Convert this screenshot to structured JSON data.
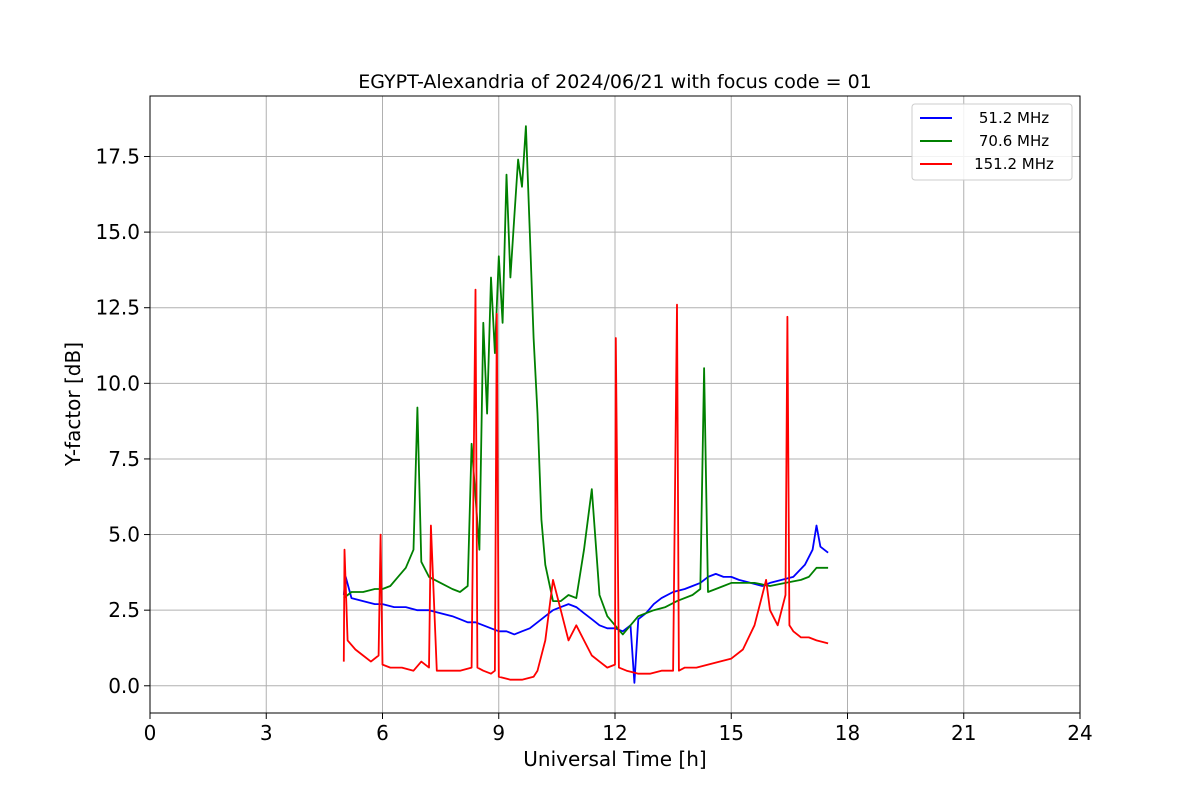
{
  "chart_data": {
    "type": "line",
    "title": "EGYPT-Alexandria of 2024/06/21 with focus code = 01",
    "xlabel": "Universal Time [h]",
    "ylabel": "Y-factor [dB]",
    "xlim": [
      0,
      24
    ],
    "ylim": [
      -0.9,
      19.5
    ],
    "xticks": [
      0,
      3,
      6,
      9,
      12,
      15,
      18,
      21,
      24
    ],
    "yticks": [
      0.0,
      2.5,
      5.0,
      7.5,
      10.0,
      12.5,
      15.0,
      17.5
    ],
    "grid": true,
    "legend_position": "top-right",
    "series": [
      {
        "name": "51.2 MHz",
        "color": "#0000ff",
        "x": [
          5.0,
          5.05,
          5.2,
          5.5,
          5.8,
          6.0,
          6.3,
          6.6,
          6.9,
          7.2,
          7.5,
          7.8,
          8.0,
          8.2,
          8.4,
          8.6,
          8.8,
          9.0,
          9.2,
          9.4,
          9.6,
          9.8,
          10.0,
          10.2,
          10.4,
          10.6,
          10.8,
          11.0,
          11.2,
          11.4,
          11.6,
          11.8,
          12.0,
          12.2,
          12.4,
          12.5,
          12.6,
          12.8,
          13.0,
          13.2,
          13.5,
          13.8,
          14.0,
          14.2,
          14.4,
          14.6,
          14.8,
          15.0,
          15.2,
          15.5,
          15.8,
          16.0,
          16.3,
          16.6,
          16.9,
          17.1,
          17.2,
          17.3,
          17.5
        ],
        "y": [
          3.0,
          3.6,
          2.9,
          2.8,
          2.7,
          2.7,
          2.6,
          2.6,
          2.5,
          2.5,
          2.4,
          2.3,
          2.2,
          2.1,
          2.1,
          2.0,
          1.9,
          1.8,
          1.8,
          1.7,
          1.8,
          1.9,
          2.1,
          2.3,
          2.5,
          2.6,
          2.7,
          2.6,
          2.4,
          2.2,
          2.0,
          1.9,
          1.9,
          1.8,
          2.0,
          0.1,
          2.2,
          2.4,
          2.7,
          2.9,
          3.1,
          3.2,
          3.3,
          3.4,
          3.6,
          3.7,
          3.6,
          3.6,
          3.5,
          3.4,
          3.3,
          3.4,
          3.5,
          3.6,
          4.0,
          4.5,
          5.3,
          4.6,
          4.4
        ]
      },
      {
        "name": "70.6 MHz",
        "color": "#008000",
        "x": [
          5.0,
          5.2,
          5.5,
          5.8,
          6.0,
          6.2,
          6.4,
          6.6,
          6.8,
          6.9,
          7.0,
          7.2,
          7.5,
          7.8,
          8.0,
          8.2,
          8.3,
          8.5,
          8.6,
          8.7,
          8.8,
          8.9,
          9.0,
          9.1,
          9.2,
          9.3,
          9.4,
          9.5,
          9.6,
          9.7,
          9.8,
          9.9,
          10.0,
          10.1,
          10.2,
          10.4,
          10.6,
          10.8,
          11.0,
          11.2,
          11.4,
          11.6,
          11.8,
          12.0,
          12.2,
          12.4,
          12.6,
          12.8,
          13.0,
          13.3,
          13.6,
          14.0,
          14.2,
          14.3,
          14.4,
          14.6,
          14.8,
          15.0,
          15.3,
          15.6,
          16.0,
          16.4,
          16.8,
          17.0,
          17.2,
          17.5
        ],
        "y": [
          2.9,
          3.1,
          3.1,
          3.2,
          3.2,
          3.3,
          3.6,
          3.9,
          4.5,
          9.2,
          4.1,
          3.6,
          3.4,
          3.2,
          3.1,
          3.3,
          8.0,
          4.5,
          12.0,
          9.0,
          13.5,
          11.0,
          14.2,
          12.0,
          16.9,
          13.5,
          15.5,
          17.4,
          16.5,
          18.5,
          15.0,
          11.5,
          9.0,
          5.5,
          4.0,
          2.8,
          2.8,
          3.0,
          2.9,
          4.5,
          6.5,
          3.0,
          2.3,
          2.0,
          1.7,
          2.0,
          2.3,
          2.4,
          2.5,
          2.6,
          2.8,
          3.0,
          3.2,
          10.5,
          3.1,
          3.2,
          3.3,
          3.4,
          3.4,
          3.4,
          3.3,
          3.4,
          3.5,
          3.6,
          3.9,
          3.9
        ]
      },
      {
        "name": "151.2 MHz",
        "color": "#ff0000",
        "x": [
          5.0,
          5.02,
          5.1,
          5.3,
          5.5,
          5.7,
          5.9,
          5.95,
          6.0,
          6.2,
          6.5,
          6.8,
          7.0,
          7.2,
          7.25,
          7.4,
          7.7,
          8.0,
          8.3,
          8.4,
          8.45,
          8.6,
          8.8,
          8.9,
          8.95,
          9.0,
          9.3,
          9.6,
          9.9,
          10.0,
          10.2,
          10.4,
          10.6,
          10.8,
          11.0,
          11.2,
          11.4,
          11.6,
          11.8,
          12.0,
          12.02,
          12.1,
          12.3,
          12.6,
          12.9,
          13.2,
          13.5,
          13.6,
          13.65,
          13.8,
          14.1,
          14.4,
          14.7,
          15.0,
          15.3,
          15.6,
          15.8,
          15.9,
          16.0,
          16.2,
          16.4,
          16.45,
          16.5,
          16.6,
          16.8,
          17.0,
          17.2,
          17.5
        ],
        "y": [
          0.8,
          4.5,
          1.5,
          1.2,
          1.0,
          0.8,
          1.0,
          5.0,
          0.7,
          0.6,
          0.6,
          0.5,
          0.8,
          0.6,
          5.3,
          0.5,
          0.5,
          0.5,
          0.6,
          13.1,
          0.6,
          0.5,
          0.4,
          0.5,
          12.3,
          0.3,
          0.2,
          0.2,
          0.3,
          0.5,
          1.5,
          3.5,
          2.5,
          1.5,
          2.0,
          1.5,
          1.0,
          0.8,
          0.6,
          0.7,
          11.5,
          0.6,
          0.5,
          0.4,
          0.4,
          0.5,
          0.5,
          12.6,
          0.5,
          0.6,
          0.6,
          0.7,
          0.8,
          0.9,
          1.2,
          2.0,
          3.0,
          3.5,
          2.5,
          2.0,
          3.0,
          12.2,
          2.0,
          1.8,
          1.6,
          1.6,
          1.5,
          1.4
        ]
      }
    ]
  }
}
